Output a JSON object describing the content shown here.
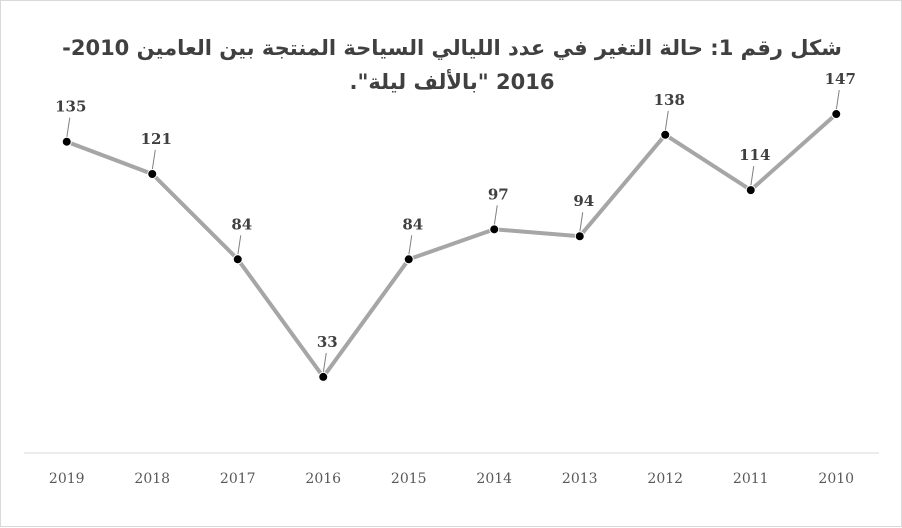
{
  "chart_data": {
    "type": "line",
    "title": "شكل رقم 1: حالة التغير في عدد الليالي السياحة المنتجة بين العامين 2010- 2016 \"بالألف ليلة\".",
    "categories": [
      "2019",
      "2018",
      "2017",
      "2016",
      "2015",
      "2014",
      "2013",
      "2012",
      "2011",
      "2010"
    ],
    "series": [
      {
        "values": [
          135,
          121,
          84,
          33,
          84,
          97,
          94,
          138,
          114,
          147
        ]
      }
    ],
    "data_labels": [
      "135",
      "121",
      "84",
      "33",
      "84",
      "97",
      "94",
      "138",
      "114",
      "147"
    ],
    "ylim": [
      0,
      170
    ],
    "grid": false,
    "legend": "none",
    "colors": {
      "line": "#a6a6a6",
      "marker_fill": "#000000",
      "marker_stroke": "#ffffff",
      "axis": "#d9d9d9",
      "text": "#404040"
    }
  }
}
